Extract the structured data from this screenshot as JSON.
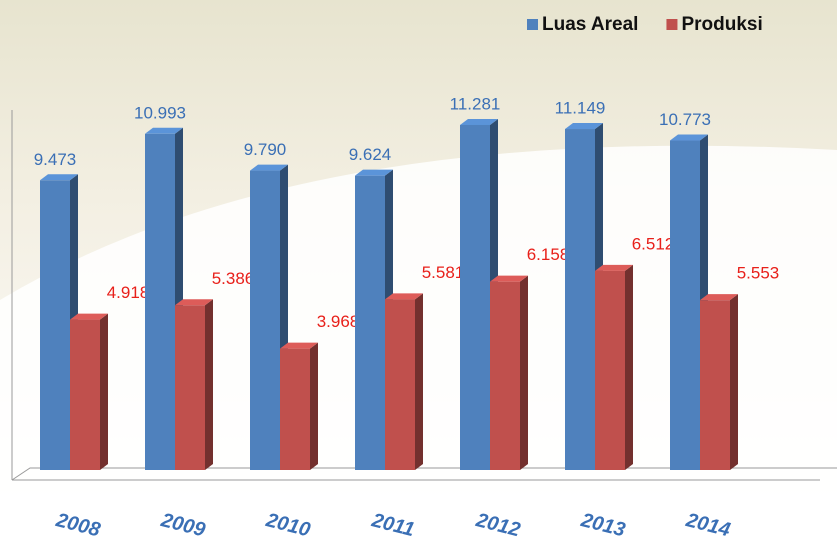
{
  "chart_data": {
    "type": "bar",
    "categories": [
      "2008",
      "2009",
      "2010",
      "2011",
      "2012",
      "2013",
      "2014"
    ],
    "series": [
      {
        "name": "Luas Areal",
        "color": "#4f81bd",
        "label_color": "#3a6fb5",
        "values": [
          9473,
          10993,
          9790,
          9624,
          11281,
          11149,
          10773
        ],
        "value_labels": [
          "9.473",
          "10.993",
          "9.790",
          "9.624",
          "11.281",
          "11.149",
          "10.773"
        ]
      },
      {
        "name": "Produksi",
        "color": "#c0504d",
        "label_color": "#e8201a",
        "values": [
          4918,
          5386,
          3968,
          5581,
          6158,
          6512,
          5553
        ],
        "value_labels": [
          "4.918",
          "5.386",
          "3.968",
          "5.581",
          "6.158",
          "6.512",
          "5.553"
        ]
      }
    ],
    "ylim": [
      0,
      12000
    ],
    "legend": "top-right"
  }
}
